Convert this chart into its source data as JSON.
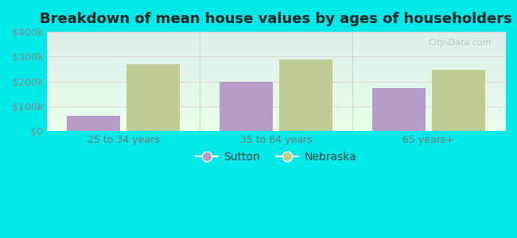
{
  "title": "Breakdown of mean house values by ages of householders",
  "categories": [
    "25 to 34 years",
    "35 to 64 years",
    "65 years+"
  ],
  "sutton_values": [
    60000,
    197000,
    172000
  ],
  "nebraska_values": [
    270000,
    287000,
    245000
  ],
  "sutton_color": "#b89cc8",
  "nebraska_color": "#c0cc96",
  "ylim": [
    0,
    400000
  ],
  "ytick_labels": [
    "$0",
    "$100k",
    "$200k",
    "$300k",
    "$400k"
  ],
  "ytick_values": [
    0,
    100000,
    200000,
    300000,
    400000
  ],
  "background_color": "#00e8e8",
  "plot_bg_top": "#ddeee8",
  "plot_bg_bottom": "#e8ffea",
  "bar_width": 0.35,
  "legend_labels": [
    "Sutton",
    "Nebraska"
  ],
  "watermark": "City-Data.com",
  "title_fontsize": 13,
  "tick_fontsize": 9,
  "legend_fontsize": 10,
  "grid_color": "#ccddcc",
  "separator_color": "#aaccaa"
}
